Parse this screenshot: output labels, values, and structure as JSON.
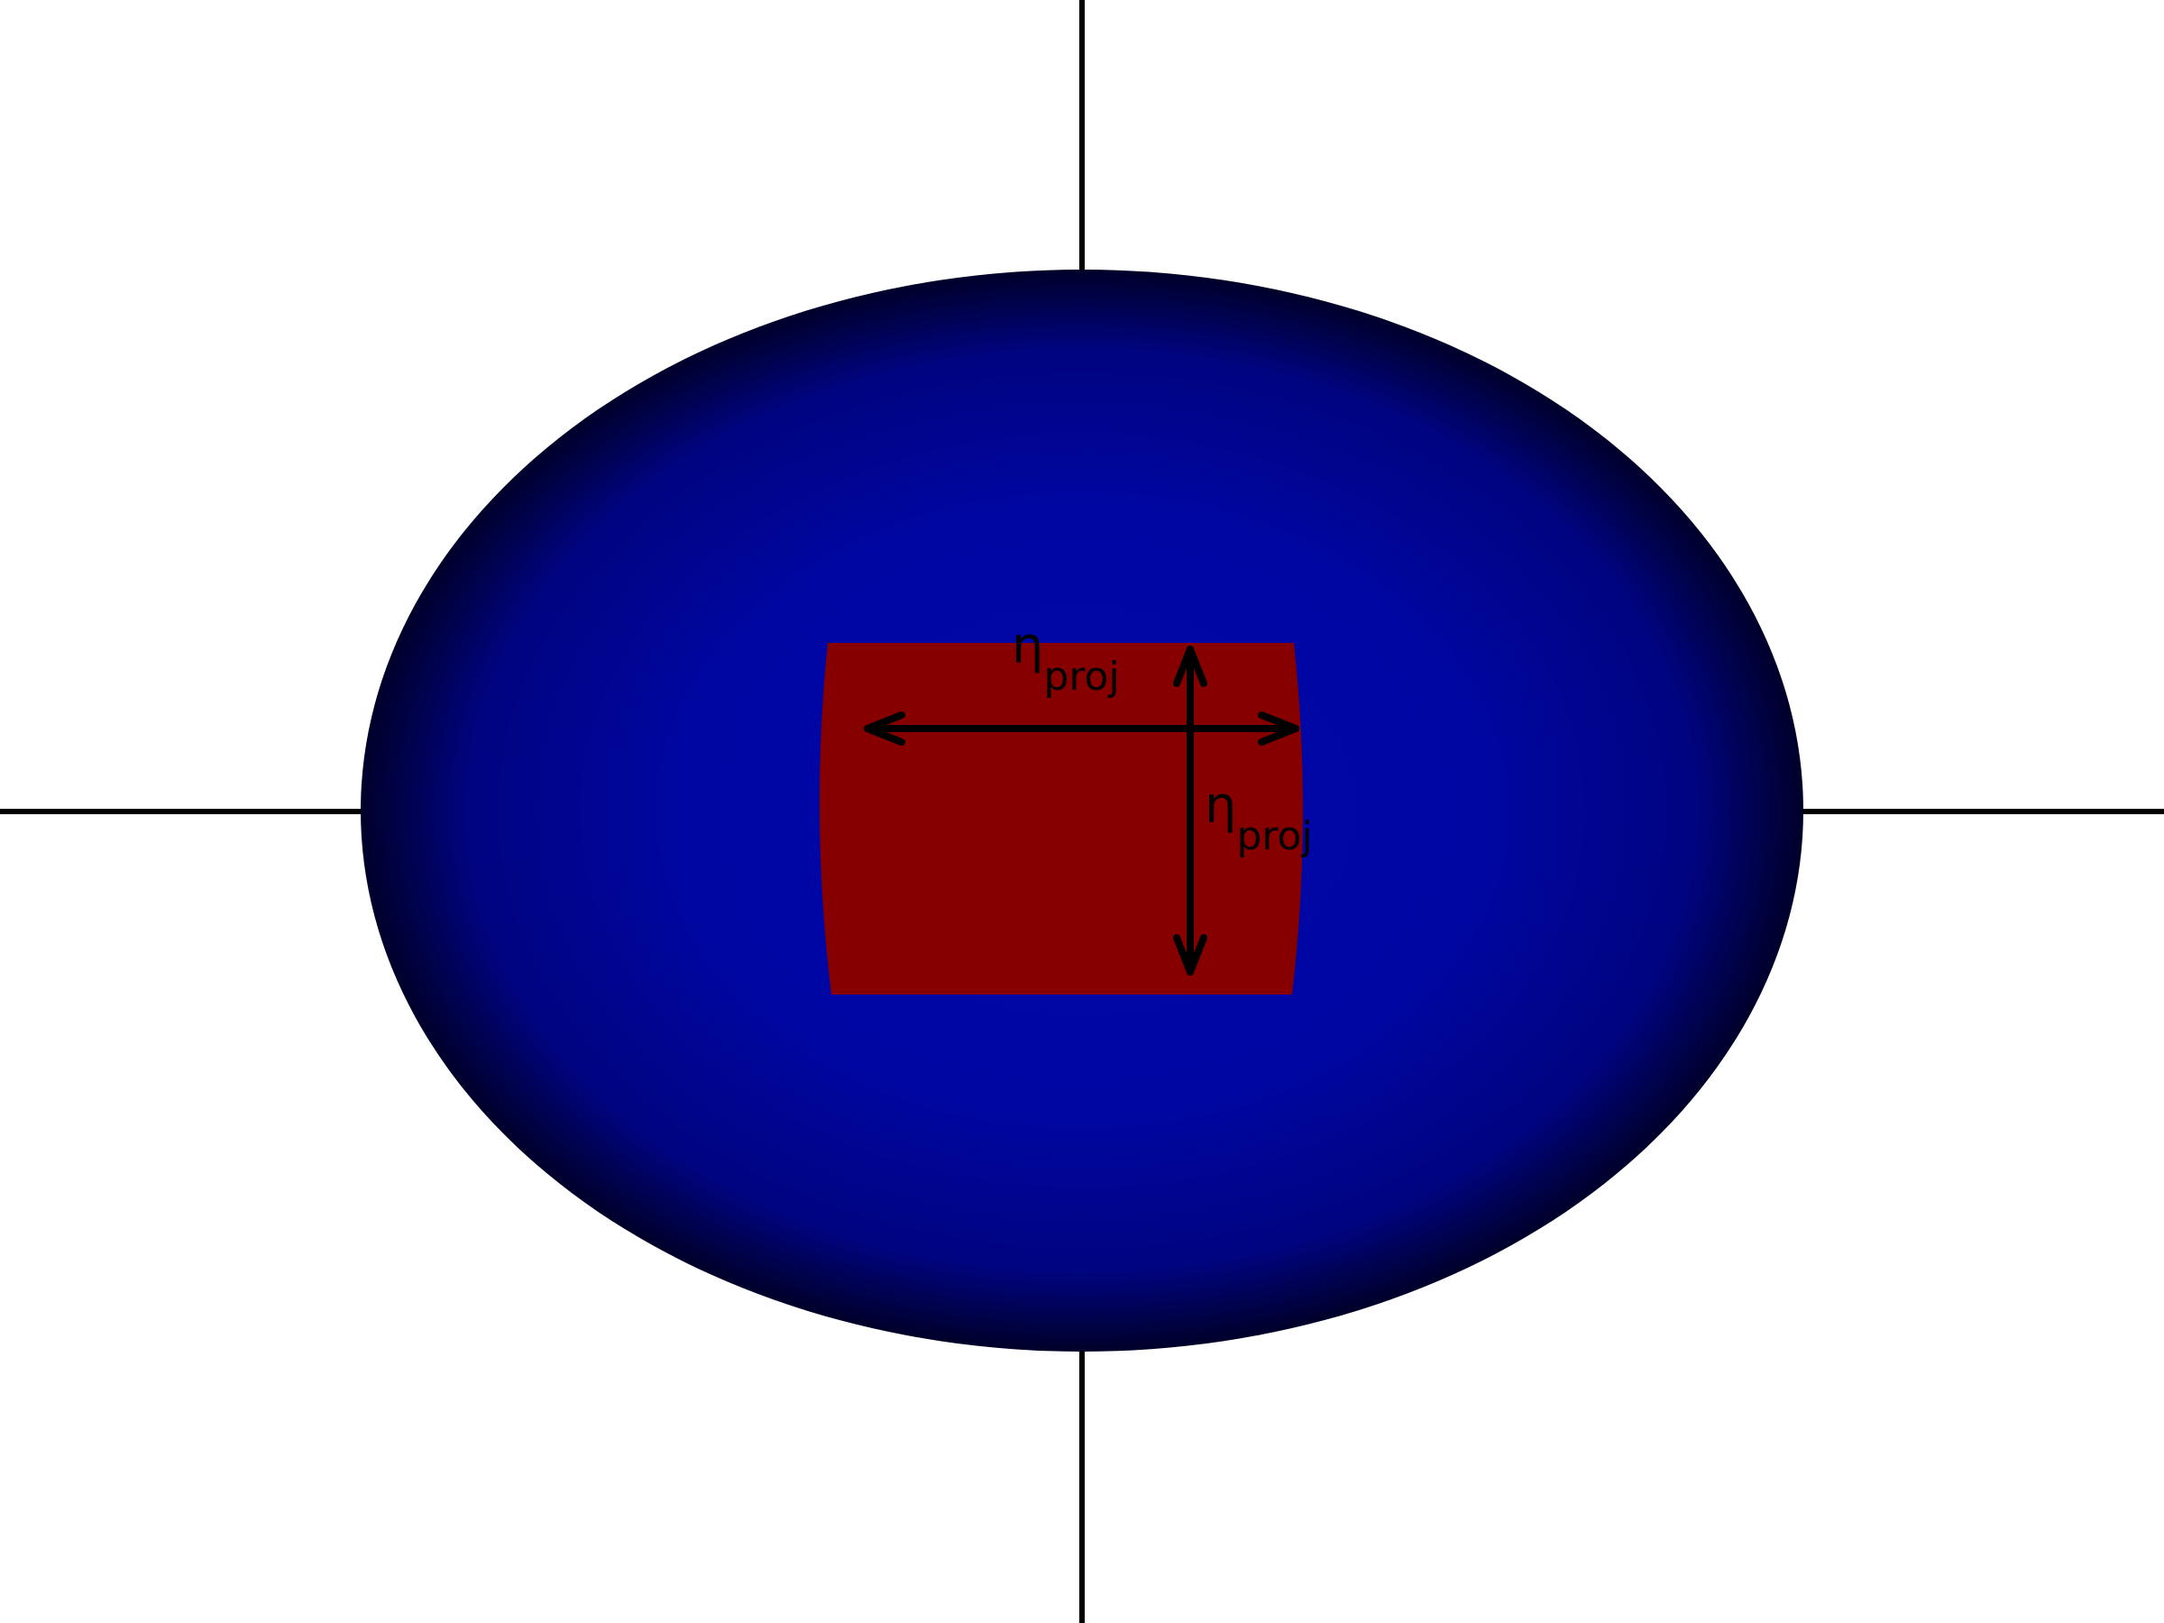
{
  "labels": {
    "horizontal": {
      "symbol": "η",
      "subscript": "proj"
    },
    "vertical": {
      "symbol": "η",
      "subscript": "proj"
    }
  },
  "colors": {
    "background": "#ffffff",
    "ellipse_center": "#0008a8",
    "ellipse_edge": "#00002a",
    "rectangle": "#870000",
    "axes": "#000000",
    "arrows": "#000000"
  }
}
